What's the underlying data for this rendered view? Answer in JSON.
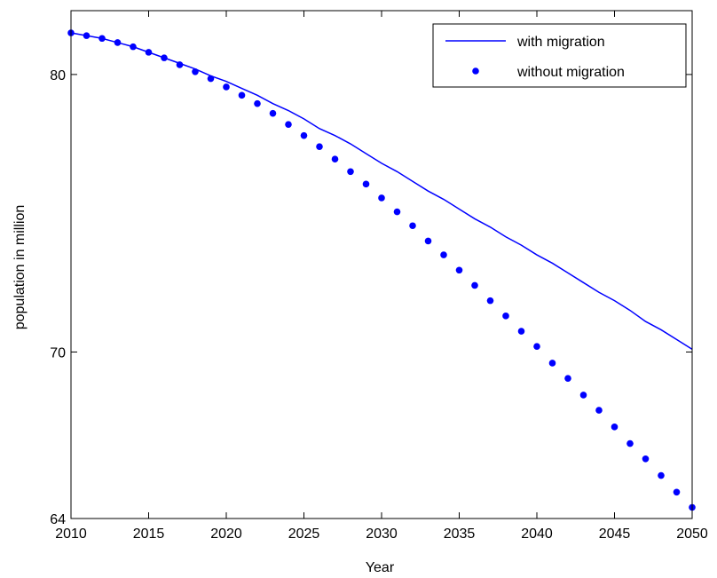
{
  "chart_data": {
    "type": "line",
    "title": "",
    "xlabel": "Year",
    "ylabel": "population in million",
    "xlim": [
      2010,
      2050
    ],
    "ylim": [
      64,
      82.3
    ],
    "x_ticks": [
      2010,
      2015,
      2020,
      2025,
      2030,
      2035,
      2040,
      2045,
      2050
    ],
    "y_ticks": [
      64,
      70,
      80
    ],
    "grid": false,
    "legend_position": "top-right",
    "series": [
      {
        "name": "with migration",
        "style": "line",
        "color": "#0000ff",
        "x": [
          2010,
          2011,
          2012,
          2013,
          2014,
          2015,
          2016,
          2017,
          2018,
          2019,
          2020,
          2021,
          2022,
          2023,
          2024,
          2025,
          2026,
          2027,
          2028,
          2029,
          2030,
          2031,
          2032,
          2033,
          2034,
          2035,
          2036,
          2037,
          2038,
          2039,
          2040,
          2041,
          2042,
          2043,
          2044,
          2045,
          2046,
          2047,
          2048,
          2049,
          2050
        ],
        "values": [
          81.5,
          81.4,
          81.3,
          81.15,
          81.0,
          80.8,
          80.6,
          80.4,
          80.2,
          79.95,
          79.75,
          79.5,
          79.25,
          78.95,
          78.7,
          78.4,
          78.05,
          77.8,
          77.5,
          77.15,
          76.8,
          76.5,
          76.15,
          75.8,
          75.5,
          75.15,
          74.8,
          74.5,
          74.15,
          73.85,
          73.5,
          73.2,
          72.85,
          72.5,
          72.15,
          71.85,
          71.5,
          71.1,
          70.8,
          70.45,
          70.1
        ]
      },
      {
        "name": "without migration",
        "style": "markers",
        "color": "#0000ff",
        "x": [
          2010,
          2011,
          2012,
          2013,
          2014,
          2015,
          2016,
          2017,
          2018,
          2019,
          2020,
          2021,
          2022,
          2023,
          2024,
          2025,
          2026,
          2027,
          2028,
          2029,
          2030,
          2031,
          2032,
          2033,
          2034,
          2035,
          2036,
          2037,
          2038,
          2039,
          2040,
          2041,
          2042,
          2043,
          2044,
          2045,
          2046,
          2047,
          2048,
          2049,
          2050
        ],
        "values": [
          81.5,
          81.4,
          81.3,
          81.15,
          81.0,
          80.8,
          80.6,
          80.35,
          80.1,
          79.85,
          79.55,
          79.25,
          78.95,
          78.6,
          78.2,
          77.8,
          77.4,
          76.95,
          76.5,
          76.05,
          75.55,
          75.05,
          74.55,
          74.0,
          73.5,
          72.95,
          72.4,
          71.85,
          71.3,
          70.75,
          70.2,
          69.6,
          69.05,
          68.45,
          67.9,
          67.3,
          66.7,
          66.15,
          65.55,
          64.95,
          64.4
        ]
      }
    ]
  }
}
